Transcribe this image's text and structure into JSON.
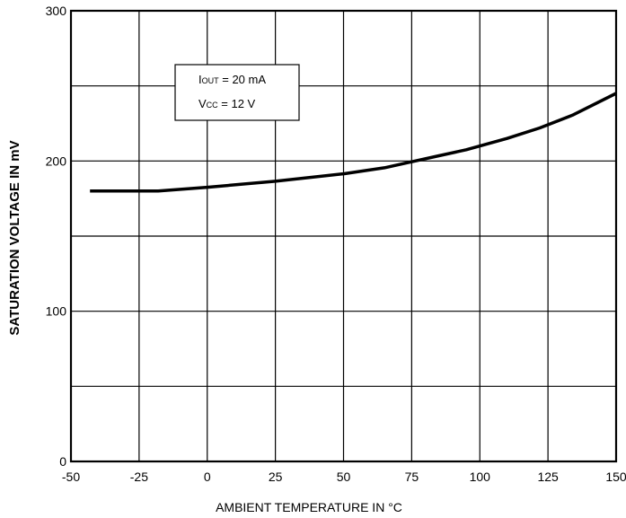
{
  "chart_data": {
    "type": "line",
    "xlabel": "AMBIENT TEMPERATURE IN °C",
    "ylabel": "SATURATION VOLTAGE IN mV",
    "xlim": [
      -50,
      150
    ],
    "ylim": [
      0,
      300
    ],
    "xticks": [
      -50,
      -25,
      0,
      25,
      50,
      75,
      100,
      125,
      150
    ],
    "yticks": [
      0,
      100,
      200,
      300
    ],
    "x_gridlines": [
      -50,
      -25,
      0,
      25,
      50,
      75,
      100,
      125,
      150
    ],
    "y_gridlines": [
      0,
      50,
      100,
      150,
      200,
      250,
      300
    ],
    "grid": true,
    "series": [
      {
        "x": [
          -43,
          -30,
          -18,
          0,
          25,
          50,
          65,
          75,
          85,
          95,
          110,
          122,
          134,
          150
        ],
        "y": [
          180,
          180,
          180,
          182.5,
          186.5,
          191.5,
          195.5,
          199.5,
          203.5,
          207.5,
          215,
          222,
          230.5,
          245
        ]
      }
    ],
    "annotation": {
      "line1": {
        "main": "I",
        "sub": "OUT",
        "rest": " = 20 mA"
      },
      "line2": {
        "main": "V",
        "sub": "CC",
        "rest": " = 12 V"
      }
    }
  }
}
